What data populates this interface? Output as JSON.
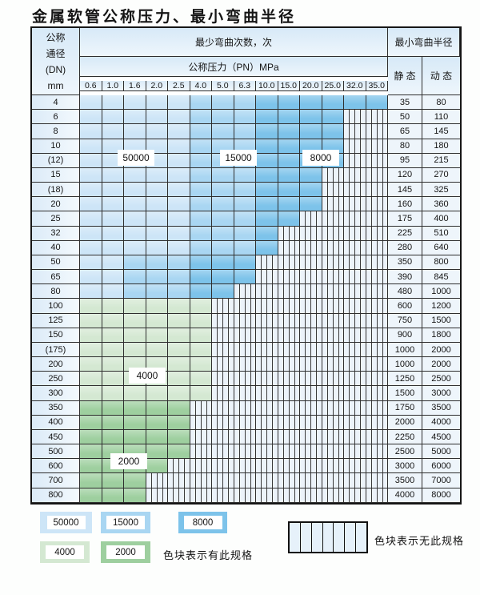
{
  "page": {
    "title": "金属软管公称压力、最小弯曲半径"
  },
  "table": {
    "dn_header": [
      "公称",
      "通径",
      "(DN)",
      "mm"
    ],
    "cycles_header": "最少弯曲次数，次",
    "pressure_header": "公称压力（PN）MPa",
    "radius_header": "最小弯曲半径",
    "static_header": "静 态",
    "dynamic_header": "动 态",
    "pressure_columns": [
      "0.6",
      "1.0",
      "1.6",
      "2.0",
      "2.5",
      "4.0",
      "5.0",
      "6.3",
      "10.0",
      "15.0",
      "20.0",
      "25.0",
      "32.0",
      "35.0"
    ],
    "rows": [
      {
        "dn": "4",
        "zone": "blue",
        "colored_through": 13,
        "m": 5,
        "d": 8,
        "static": "35",
        "dynamic": "80"
      },
      {
        "dn": "6",
        "zone": "blue",
        "colored_through": 11,
        "m": 5,
        "d": 8,
        "static": "50",
        "dynamic": "110"
      },
      {
        "dn": "8",
        "zone": "blue",
        "colored_through": 11,
        "m": 5,
        "d": 8,
        "static": "65",
        "dynamic": "145"
      },
      {
        "dn": "10",
        "zone": "blue",
        "colored_through": 11,
        "m": 5,
        "d": 8,
        "static": "80",
        "dynamic": "180"
      },
      {
        "dn": "(12)",
        "zone": "blue",
        "colored_through": 11,
        "m": 5,
        "d": 8,
        "static": "95",
        "dynamic": "215"
      },
      {
        "dn": "15",
        "zone": "blue",
        "colored_through": 10,
        "m": 5,
        "d": 8,
        "static": "120",
        "dynamic": "270"
      },
      {
        "dn": "(18)",
        "zone": "blue",
        "colored_through": 10,
        "m": 5,
        "d": 8,
        "static": "145",
        "dynamic": "325"
      },
      {
        "dn": "20",
        "zone": "blue",
        "colored_through": 10,
        "m": 5,
        "d": 8,
        "static": "160",
        "dynamic": "360"
      },
      {
        "dn": "25",
        "zone": "blue",
        "colored_through": 9,
        "m": 5,
        "d": 8,
        "static": "175",
        "dynamic": "400"
      },
      {
        "dn": "32",
        "zone": "blue",
        "colored_through": 8,
        "m": 5,
        "d": 8,
        "static": "225",
        "dynamic": "510"
      },
      {
        "dn": "40",
        "zone": "blue",
        "colored_through": 8,
        "m": 5,
        "d": 8,
        "static": "280",
        "dynamic": "640"
      },
      {
        "dn": "50",
        "zone": "blue",
        "colored_through": 7,
        "m": 2,
        "d": 5,
        "static": "350",
        "dynamic": "800"
      },
      {
        "dn": "65",
        "zone": "blue",
        "colored_through": 7,
        "m": 2,
        "d": 5,
        "static": "390",
        "dynamic": "845"
      },
      {
        "dn": "80",
        "zone": "blue",
        "colored_through": 6,
        "m": 2,
        "d": 5,
        "static": "480",
        "dynamic": "1000"
      },
      {
        "dn": "100",
        "zone": "green4000",
        "colored_through": 5,
        "static": "600",
        "dynamic": "1200"
      },
      {
        "dn": "125",
        "zone": "green4000",
        "colored_through": 5,
        "static": "750",
        "dynamic": "1500"
      },
      {
        "dn": "150",
        "zone": "green4000",
        "colored_through": 5,
        "static": "900",
        "dynamic": "1800"
      },
      {
        "dn": "(175)",
        "zone": "green4000",
        "colored_through": 5,
        "static": "1000",
        "dynamic": "2000"
      },
      {
        "dn": "200",
        "zone": "green4000",
        "colored_through": 5,
        "static": "1000",
        "dynamic": "2000"
      },
      {
        "dn": "250",
        "zone": "green4000",
        "colored_through": 5,
        "static": "1250",
        "dynamic": "2500"
      },
      {
        "dn": "300",
        "zone": "green4000",
        "colored_through": 5,
        "static": "1500",
        "dynamic": "3000"
      },
      {
        "dn": "350",
        "zone": "green2000",
        "colored_through": 4,
        "static": "1750",
        "dynamic": "3500"
      },
      {
        "dn": "400",
        "zone": "green2000",
        "colored_through": 4,
        "static": "2000",
        "dynamic": "4000"
      },
      {
        "dn": "450",
        "zone": "green2000",
        "colored_through": 4,
        "static": "2250",
        "dynamic": "4500"
      },
      {
        "dn": "500",
        "zone": "green2000",
        "colored_through": 4,
        "static": "2500",
        "dynamic": "5000"
      },
      {
        "dn": "600",
        "zone": "green2000",
        "colored_through": 3,
        "static": "3000",
        "dynamic": "6000"
      },
      {
        "dn": "700",
        "zone": "green2000",
        "colored_through": 2,
        "static": "3500",
        "dynamic": "7000"
      },
      {
        "dn": "800",
        "zone": "green2000",
        "colored_through": 2,
        "static": "4000",
        "dynamic": "8000"
      }
    ]
  },
  "region_labels": {
    "cycles_50000": "50000",
    "cycles_15000": "15000",
    "cycles_8000": "8000",
    "cycles_4000": "4000",
    "cycles_2000": "2000"
  },
  "legend": {
    "items": [
      {
        "label": "50000",
        "color": "#cde5f7"
      },
      {
        "label": "15000",
        "color": "#a9d6f2"
      },
      {
        "label": "8000",
        "color": "#7dc3ea"
      },
      {
        "label": "4000",
        "color": "#d4e8d2"
      },
      {
        "label": "2000",
        "color": "#9ecf9f"
      }
    ],
    "has_spec_text": "色块表示有此规格",
    "no_spec_text": "色块表示无此规格"
  },
  "colors": {
    "blue_50000": "#cde5f7",
    "blue_15000": "#a9d6f2",
    "blue_8000": "#7dc3ea",
    "green_4000": "#d4e8d2",
    "green_2000": "#9ecf9f",
    "nospec_bg": "#ecf3fa",
    "grid_line": "#2e2e2e",
    "page_bg": "#fdfefd"
  }
}
